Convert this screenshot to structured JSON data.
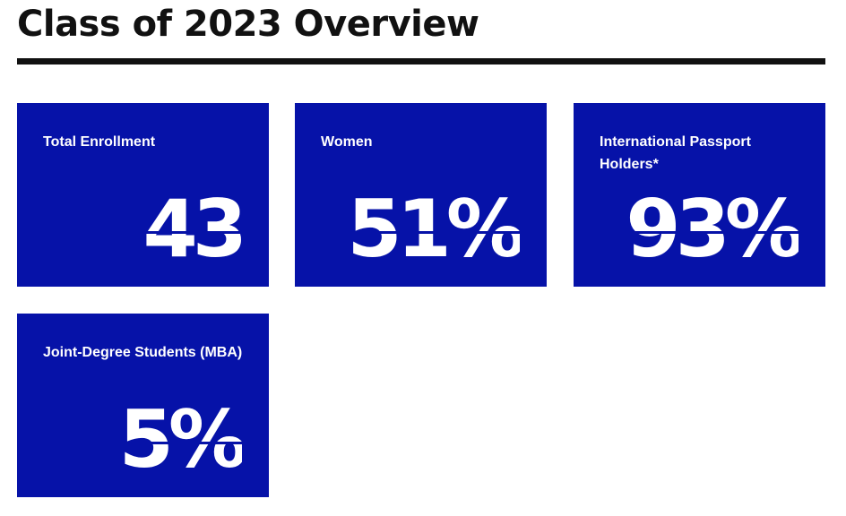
{
  "header": {
    "title": "Class of 2023 Overview"
  },
  "cards": [
    {
      "label": "Total Enrollment",
      "value": "43"
    },
    {
      "label": "Women",
      "value": "51%"
    },
    {
      "label": "International Passport Holders*",
      "value": "93%"
    },
    {
      "label": "Joint-Degree Students (MBA)",
      "value": "5%"
    }
  ]
}
